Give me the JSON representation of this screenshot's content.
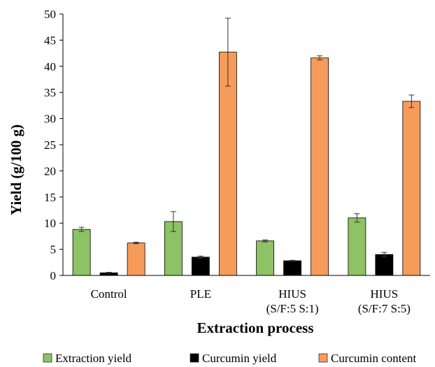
{
  "chart_data": {
    "type": "bar",
    "title": "",
    "xlabel": "Extraction process",
    "ylabel": "Yield (g/100 g)",
    "ylim": [
      0,
      50
    ],
    "yticks": [
      0,
      5,
      10,
      15,
      20,
      25,
      30,
      35,
      40,
      45,
      50
    ],
    "grid": false,
    "legend_position": "bottom",
    "categories": [
      [
        "Control"
      ],
      [
        "PLE"
      ],
      [
        "HIUS",
        "(S/F:5 S:1)"
      ],
      [
        "HIUS",
        "(S/F:7 S:5)"
      ]
    ],
    "series": [
      {
        "name": "Extraction yield",
        "color": "#8dc265",
        "values": [
          8.8,
          10.3,
          6.6,
          11.0
        ],
        "errors": [
          0.4,
          1.9,
          0.2,
          0.8
        ]
      },
      {
        "name": "Curcumin yield",
        "color": "#000000",
        "values": [
          0.5,
          3.5,
          2.8,
          4.0
        ],
        "errors": [
          0.1,
          0.2,
          0.1,
          0.4
        ]
      },
      {
        "name": "Curcumin content",
        "color": "#f79b5b",
        "values": [
          6.2,
          42.7,
          41.6,
          33.3
        ],
        "errors": [
          0.15,
          6.5,
          0.4,
          1.2
        ]
      }
    ]
  }
}
